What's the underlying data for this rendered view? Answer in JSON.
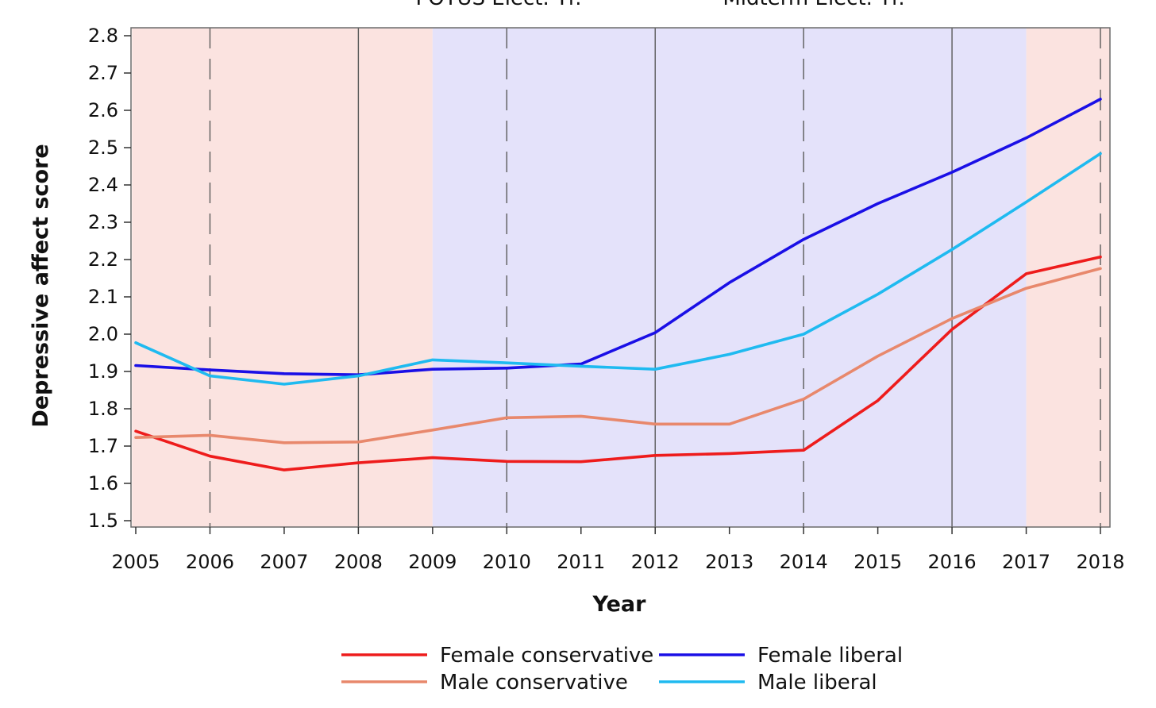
{
  "chart_data": {
    "type": "line",
    "title": "",
    "top_labels": [
      "POTUS Elect. Yr.",
      "Midterm Elect. Yr."
    ],
    "xlabel": "Year",
    "ylabel": "Depressive affect score",
    "x": [
      2005,
      2006,
      2007,
      2008,
      2009,
      2010,
      2011,
      2012,
      2013,
      2014,
      2015,
      2016,
      2017,
      2018
    ],
    "x_tick_labels": [
      "2005",
      "2006",
      "2007",
      "2008",
      "2009",
      "2010",
      "2011",
      "2012",
      "2013",
      "2014",
      "2015",
      "2016",
      "2017",
      "2018"
    ],
    "ylim": [
      1.5,
      2.8
    ],
    "y_ticks": [
      1.5,
      1.6,
      1.7,
      1.8,
      1.9,
      2.0,
      2.1,
      2.2,
      2.3,
      2.4,
      2.5,
      2.6,
      2.7,
      2.8
    ],
    "y_tick_labels": [
      "1.5",
      "1.6",
      "1.7",
      "1.8",
      "1.9",
      "2.0",
      "2.1",
      "2.2",
      "2.3",
      "2.4",
      "2.5",
      "2.6",
      "2.7",
      "2.8"
    ],
    "background_bands": [
      {
        "from": 2004.95,
        "to": 2009,
        "color": "#fbe3e0"
      },
      {
        "from": 2009,
        "to": 2017,
        "color": "#e4e2fa"
      },
      {
        "from": 2017,
        "to": 2018.15,
        "color": "#fbe3e0"
      }
    ],
    "potus_election_years": [
      2008,
      2012,
      2016
    ],
    "midterm_election_years": [
      2006,
      2010,
      2014,
      2018
    ],
    "other_gridline_years": [
      2007,
      2009,
      2011,
      2013,
      2015,
      2017
    ],
    "series": [
      {
        "name": "Female conservative",
        "color": "#ee1c1c",
        "values": [
          1.74,
          1.673,
          1.636,
          1.655,
          1.669,
          1.659,
          1.658,
          1.675,
          1.68,
          1.689,
          1.822,
          2.013,
          2.162,
          2.207
        ]
      },
      {
        "name": "Male conservative",
        "color": "#e8886c",
        "values": [
          1.723,
          1.729,
          1.709,
          1.711,
          1.743,
          1.776,
          1.78,
          1.759,
          1.759,
          1.826,
          1.941,
          2.042,
          2.123,
          2.176
        ]
      },
      {
        "name": "Female liberal",
        "color": "#1a0fe6",
        "values": [
          1.916,
          1.904,
          1.894,
          1.891,
          1.906,
          1.909,
          1.92,
          2.004,
          2.138,
          2.254,
          2.35,
          2.434,
          2.526,
          2.63
        ]
      },
      {
        "name": "Male liberal",
        "color": "#1fbaf0",
        "values": [
          1.977,
          1.888,
          1.866,
          1.888,
          1.931,
          1.923,
          1.914,
          1.906,
          1.946,
          2.0,
          2.107,
          2.227,
          2.354,
          2.484
        ]
      }
    ],
    "grid": true,
    "legend_position": "bottom"
  }
}
